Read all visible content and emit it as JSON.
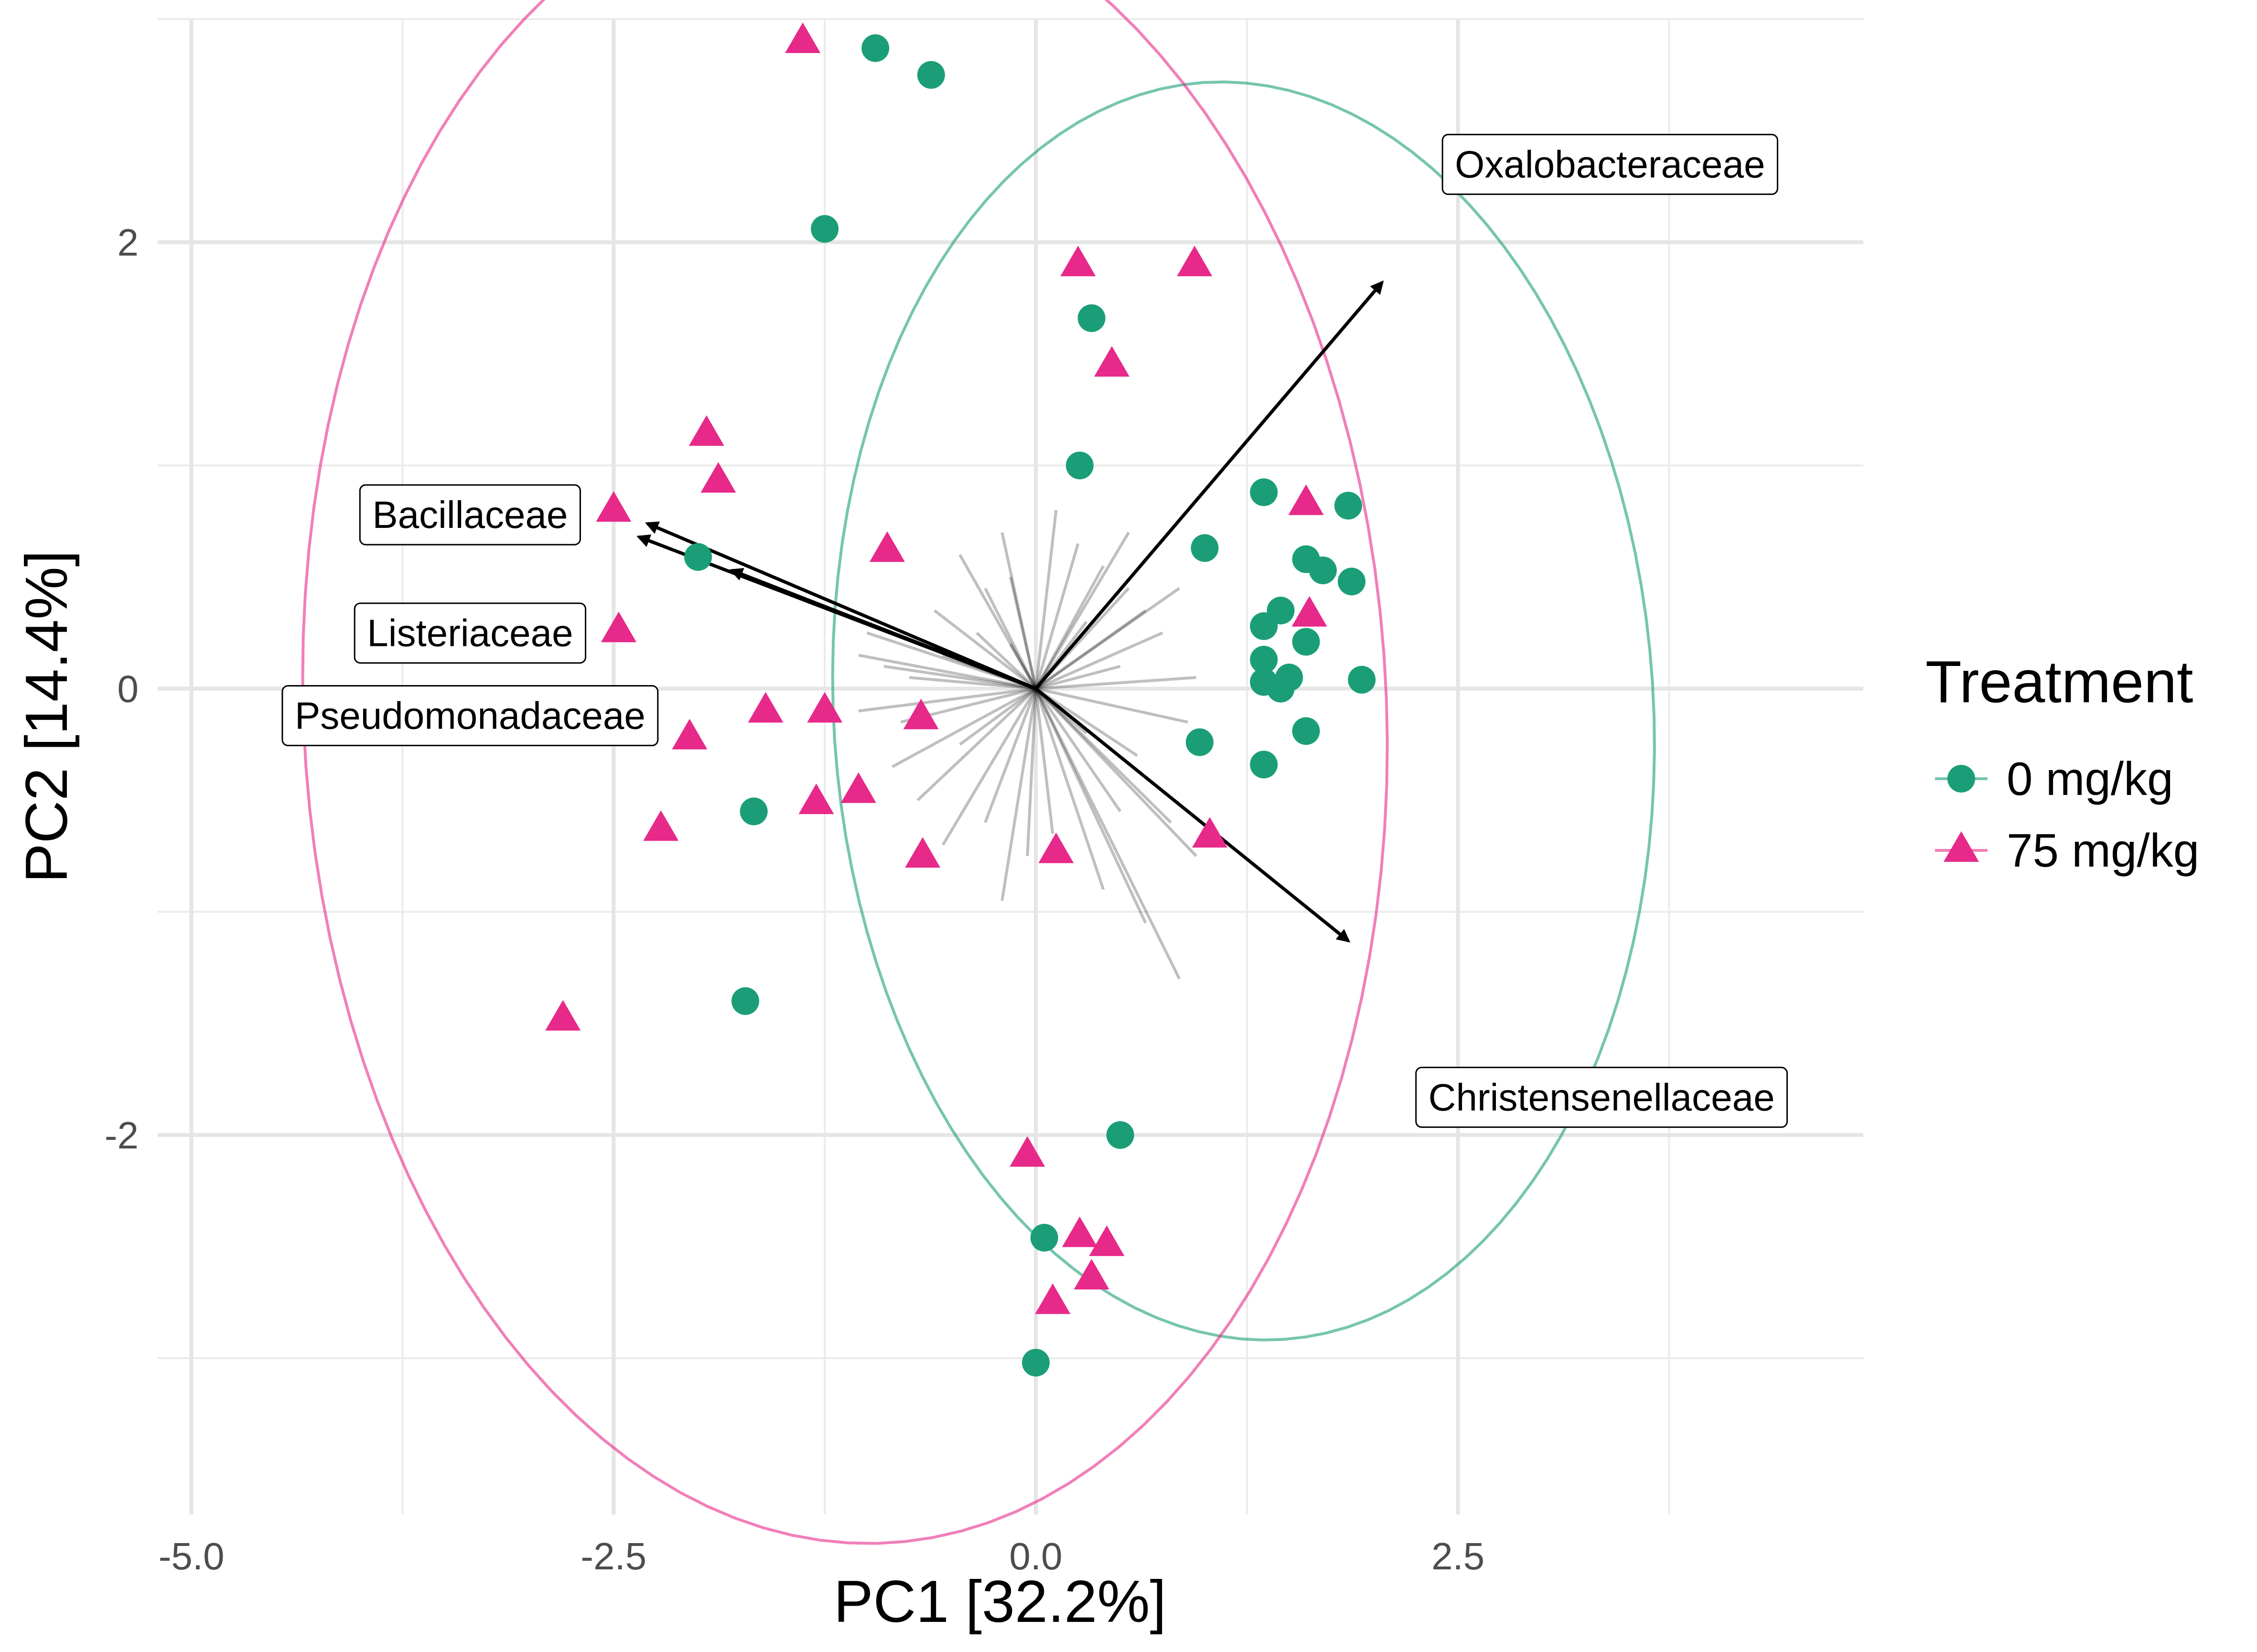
{
  "chart_data": {
    "type": "scatter",
    "title": "",
    "xlabel": "PC1 [32.2%]",
    "ylabel": "PC2 [14.4%]",
    "xlim": [
      -5.2,
      4.9
    ],
    "ylim": [
      -3.7,
      3.0
    ],
    "x_ticks": [
      -5.0,
      -2.5,
      0.0,
      2.5
    ],
    "x_tick_labels": [
      "-5.0",
      "-2.5",
      "0.0",
      "2.5"
    ],
    "y_ticks": [
      -2,
      0,
      2
    ],
    "y_tick_labels": [
      "-2",
      "0",
      "2"
    ],
    "grid": true,
    "legend": {
      "title": "Treatment",
      "position": "right",
      "entries": [
        {
          "label": "0 mg/kg",
          "color": "#1b9e77",
          "shape": "circle"
        },
        {
          "label": "75 mg/kg",
          "color": "#e7298a",
          "shape": "triangle"
        }
      ]
    },
    "series": [
      {
        "name": "0 mg/kg",
        "color": "#1b9e77",
        "shape": "circle",
        "points": [
          [
            -0.95,
            2.87
          ],
          [
            -0.62,
            2.75
          ],
          [
            -1.25,
            2.06
          ],
          [
            0.33,
            1.66
          ],
          [
            0.26,
            1.0
          ],
          [
            1.35,
            0.88
          ],
          [
            1.85,
            0.82
          ],
          [
            1.0,
            0.63
          ],
          [
            1.6,
            0.58
          ],
          [
            1.7,
            0.53
          ],
          [
            1.87,
            0.48
          ],
          [
            1.45,
            0.35
          ],
          [
            1.35,
            0.28
          ],
          [
            1.6,
            0.21
          ],
          [
            1.35,
            0.13
          ],
          [
            1.5,
            0.05
          ],
          [
            1.93,
            0.04
          ],
          [
            1.35,
            0.03
          ],
          [
            1.45,
            0.0
          ],
          [
            1.6,
            -0.19
          ],
          [
            0.97,
            -0.24
          ],
          [
            1.35,
            -0.34
          ],
          [
            -2.0,
            0.59
          ],
          [
            -1.67,
            -0.55
          ],
          [
            -1.72,
            -1.4
          ],
          [
            0.5,
            -2.0
          ],
          [
            0.05,
            -2.46
          ],
          [
            0.0,
            -3.02
          ]
        ]
      },
      {
        "name": "75 mg/kg",
        "color": "#e7298a",
        "shape": "triangle",
        "points": [
          [
            -1.38,
            2.9
          ],
          [
            0.25,
            1.9
          ],
          [
            0.94,
            1.9
          ],
          [
            0.45,
            1.45
          ],
          [
            -1.95,
            1.14
          ],
          [
            -1.88,
            0.93
          ],
          [
            -2.5,
            0.8
          ],
          [
            -0.88,
            0.62
          ],
          [
            1.6,
            0.83
          ],
          [
            1.62,
            0.33
          ],
          [
            -2.47,
            0.26
          ],
          [
            -1.6,
            -0.1
          ],
          [
            -1.25,
            -0.1
          ],
          [
            -0.68,
            -0.13
          ],
          [
            -2.05,
            -0.22
          ],
          [
            -1.3,
            -0.51
          ],
          [
            -1.05,
            -0.46
          ],
          [
            -2.22,
            -0.63
          ],
          [
            -0.67,
            -0.75
          ],
          [
            0.12,
            -0.73
          ],
          [
            1.03,
            -0.66
          ],
          [
            -2.8,
            -1.48
          ],
          [
            -0.05,
            -2.09
          ],
          [
            0.26,
            -2.45
          ],
          [
            0.42,
            -2.49
          ],
          [
            0.33,
            -2.64
          ],
          [
            0.1,
            -2.75
          ]
        ]
      }
    ],
    "ellipses": [
      {
        "series": "0 mg/kg",
        "color": "#1b9e77",
        "center": [
          1.23,
          -0.1
        ],
        "semi_axes": [
          2.42,
          2.83
        ],
        "angle_deg": 10
      },
      {
        "series": "75 mg/kg",
        "color": "#e7298a",
        "center": [
          -1.13,
          -0.1
        ],
        "semi_axes": [
          3.2,
          3.74
        ],
        "angle_deg": 8
      }
    ],
    "loadings_highlighted": [
      {
        "name": "Oxalobacteraceae",
        "x": 2.05,
        "y": 1.82,
        "label_x": 3.4,
        "label_y": 2.35
      },
      {
        "name": "Bacillaceae",
        "x": -2.3,
        "y": 0.74,
        "label_x": -3.35,
        "label_y": 0.78
      },
      {
        "name": "Listeriaceae",
        "x": -2.35,
        "y": 0.68,
        "label_x": -3.35,
        "label_y": 0.25
      },
      {
        "name": "Pseudomonadaceae",
        "x": -1.8,
        "y": 0.53,
        "label_x": -3.35,
        "label_y": -0.12
      },
      {
        "name": "Christensenellaceae",
        "x": 1.85,
        "y": -1.13,
        "label_x": 3.35,
        "label_y": -1.83
      }
    ],
    "loadings_other": [
      [
        -0.2,
        0.7
      ],
      [
        -0.15,
        0.5
      ],
      [
        -0.3,
        0.45
      ],
      [
        -0.45,
        0.6
      ],
      [
        0.12,
        0.8
      ],
      [
        0.25,
        0.65
      ],
      [
        0.4,
        0.55
      ],
      [
        0.55,
        0.45
      ],
      [
        0.85,
        0.45
      ],
      [
        0.75,
        0.25
      ],
      [
        0.95,
        0.05
      ],
      [
        0.9,
        -0.15
      ],
      [
        0.6,
        -0.3
      ],
      [
        0.5,
        -0.55
      ],
      [
        0.8,
        -0.6
      ],
      [
        0.95,
        -0.75
      ],
      [
        0.65,
        -1.05
      ],
      [
        0.85,
        -1.3
      ],
      [
        0.4,
        -0.9
      ],
      [
        0.1,
        -0.65
      ],
      [
        -0.05,
        -0.75
      ],
      [
        -0.2,
        -0.95
      ],
      [
        -0.3,
        -0.6
      ],
      [
        -0.55,
        -0.7
      ],
      [
        -0.7,
        -0.5
      ],
      [
        -0.85,
        -0.35
      ],
      [
        -0.8,
        -0.15
      ],
      [
        -1.05,
        -0.1
      ],
      [
        -1.05,
        0.15
      ],
      [
        -0.75,
        0.05
      ],
      [
        -1.0,
        0.25
      ],
      [
        -0.6,
        0.35
      ],
      [
        -0.35,
        0.25
      ],
      [
        0.3,
        0.3
      ],
      [
        0.5,
        0.1
      ],
      [
        0.3,
        -0.2
      ],
      [
        -0.15,
        0.2
      ],
      [
        -0.45,
        -0.25
      ],
      [
        0.55,
        0.7
      ],
      [
        0.65,
        0.35
      ],
      [
        -0.55,
        0.15
      ],
      [
        -0.9,
        0.1
      ]
    ]
  }
}
